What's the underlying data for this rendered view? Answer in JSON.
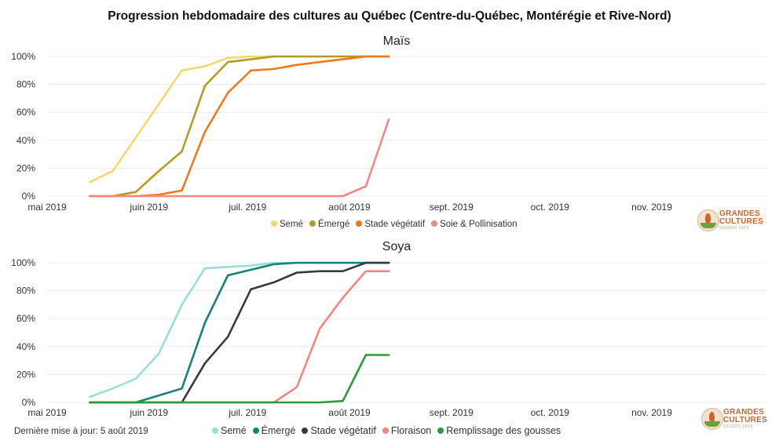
{
  "title": "Progression hebdomadaire des cultures au Québec (Centre-du-Québec, Montérégie et Rive-Nord)",
  "updated": "Dernière mise à jour: 5 août 2019",
  "logo": {
    "line1": "GRANDES",
    "line2": "CULTURES",
    "line3": "SAISON 2019"
  },
  "chart_data": [
    {
      "type": "line",
      "title": "Maïs",
      "xlabel": "",
      "ylabel": "",
      "x_ticks": [
        "mai 2019",
        "juin 2019",
        "juil. 2019",
        "août 2019",
        "sept. 2019",
        "oct. 2019",
        "nov. 2019"
      ],
      "x_tick_days": [
        0,
        31,
        61,
        92,
        123,
        153,
        184
      ],
      "xlim_days": [
        0,
        184
      ],
      "y_ticks": [
        "0%",
        "20%",
        "40%",
        "60%",
        "80%",
        "100%"
      ],
      "ylim": [
        0,
        100
      ],
      "grid": true,
      "legend": "bottom",
      "x_days": [
        13,
        20,
        27,
        34,
        41,
        48,
        55,
        62,
        69,
        76,
        83,
        90,
        97,
        104
      ],
      "series": [
        {
          "name": "Semé",
          "color": "#f1d96b",
          "values": [
            10,
            18,
            42,
            66,
            90,
            93,
            99,
            100,
            100,
            100,
            100,
            100,
            100,
            100
          ]
        },
        {
          "name": "Émergé",
          "color": "#b39c20",
          "values": [
            0,
            0,
            3,
            18,
            32,
            79,
            96,
            98,
            100,
            100,
            100,
            100,
            100,
            100
          ]
        },
        {
          "name": "Stade végétatif",
          "color": "#f07a1a",
          "values": [
            0,
            0,
            0,
            1,
            4,
            46,
            74,
            90,
            91,
            94,
            96,
            98,
            100,
            100
          ]
        },
        {
          "name": "Soie & Pollinisation",
          "color": "#f18a84",
          "values": [
            0,
            0,
            0,
            0,
            0,
            0,
            0,
            0,
            0,
            0,
            0,
            0,
            7,
            55
          ]
        }
      ]
    },
    {
      "type": "line",
      "title": "Soya",
      "xlabel": "",
      "ylabel": "",
      "x_ticks": [
        "mai 2019",
        "juin 2019",
        "juil. 2019",
        "août 2019",
        "sept. 2019",
        "oct. 2019",
        "nov. 2019"
      ],
      "x_tick_days": [
        0,
        31,
        61,
        92,
        123,
        153,
        184
      ],
      "xlim_days": [
        0,
        184
      ],
      "y_ticks": [
        "0%",
        "20%",
        "40%",
        "60%",
        "80%",
        "100%"
      ],
      "ylim": [
        0,
        100
      ],
      "grid": true,
      "legend": "bottom",
      "x_days": [
        13,
        20,
        27,
        34,
        41,
        48,
        55,
        62,
        69,
        76,
        83,
        90,
        97,
        104
      ],
      "series": [
        {
          "name": "Semé",
          "color": "#97e0d8",
          "values": [
            4,
            10,
            17,
            35,
            70,
            96,
            97,
            98,
            100,
            100,
            100,
            100,
            100,
            100
          ]
        },
        {
          "name": "Émergé",
          "color": "#158478",
          "values": [
            0,
            0,
            0,
            5,
            10,
            57,
            91,
            95,
            99,
            100,
            100,
            100,
            100,
            100
          ]
        },
        {
          "name": "Stade végétatif",
          "color": "#363b40",
          "values": [
            0,
            0,
            0,
            0,
            0,
            28,
            47,
            81,
            86,
            93,
            94,
            94,
            100,
            100
          ]
        },
        {
          "name": "Floraison",
          "color": "#f48580",
          "values": [
            0,
            0,
            0,
            0,
            0,
            0,
            0,
            0,
            0,
            11,
            53,
            75,
            94,
            94
          ]
        },
        {
          "name": "Remplissage des gousses",
          "color": "#2e9a3c",
          "values": [
            0,
            0,
            0,
            0,
            0,
            0,
            0,
            0,
            0,
            0,
            0,
            1,
            34,
            34
          ]
        }
      ]
    }
  ]
}
